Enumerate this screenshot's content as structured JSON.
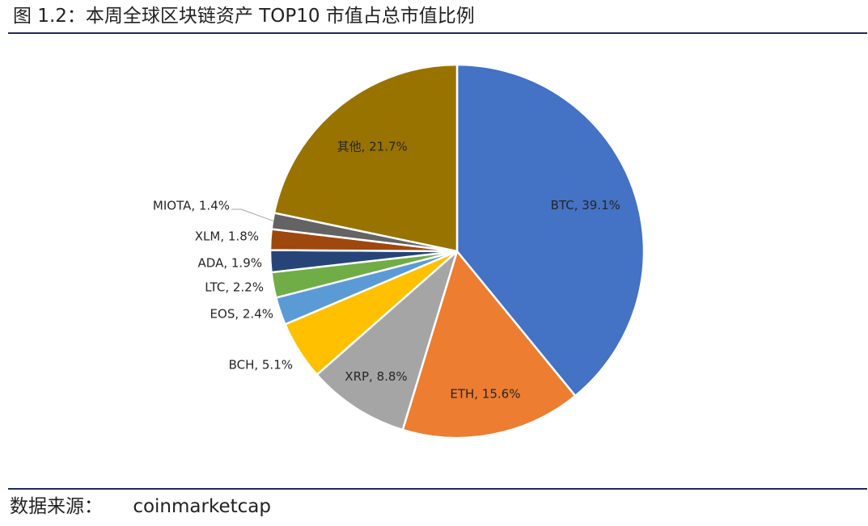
{
  "figure": {
    "title": "图 1.2：本周全球区块链资产 TOP10 市值占总市值比例",
    "source_label": "数据来源：",
    "source_value": "coinmarketcap"
  },
  "chart_data": {
    "type": "pie",
    "title": "",
    "legend": "none",
    "label_format": "{name}, {value}%",
    "slices": [
      {
        "name": "BTC",
        "value": 39.1,
        "display": "BTC, 39.1%",
        "color": "#4472C4"
      },
      {
        "name": "ETH",
        "value": 15.6,
        "display": "ETH, 15.6%",
        "color": "#ED7D31"
      },
      {
        "name": "XRP",
        "value": 8.8,
        "display": "XRP, 8.8%",
        "color": "#A5A5A5"
      },
      {
        "name": "BCH",
        "value": 5.1,
        "display": "BCH, 5.1%",
        "color": "#FFC000"
      },
      {
        "name": "EOS",
        "value": 2.4,
        "display": "EOS, 2.4%",
        "color": "#5B9BD5"
      },
      {
        "name": "LTC",
        "value": 2.2,
        "display": "LTC, 2.2%",
        "color": "#70AD47"
      },
      {
        "name": "ADA",
        "value": 1.9,
        "display": "ADA, 1.9%",
        "color": "#264478"
      },
      {
        "name": "XLM",
        "value": 1.8,
        "display": "XLM, 1.8%",
        "color": "#9E480E"
      },
      {
        "name": "MIOTA",
        "value": 1.4,
        "display": "MIOTA, 1.4%",
        "color": "#636363"
      },
      {
        "name": "其他",
        "value": 21.7,
        "display": "其他, 21.7%",
        "color": "#997300"
      }
    ]
  }
}
